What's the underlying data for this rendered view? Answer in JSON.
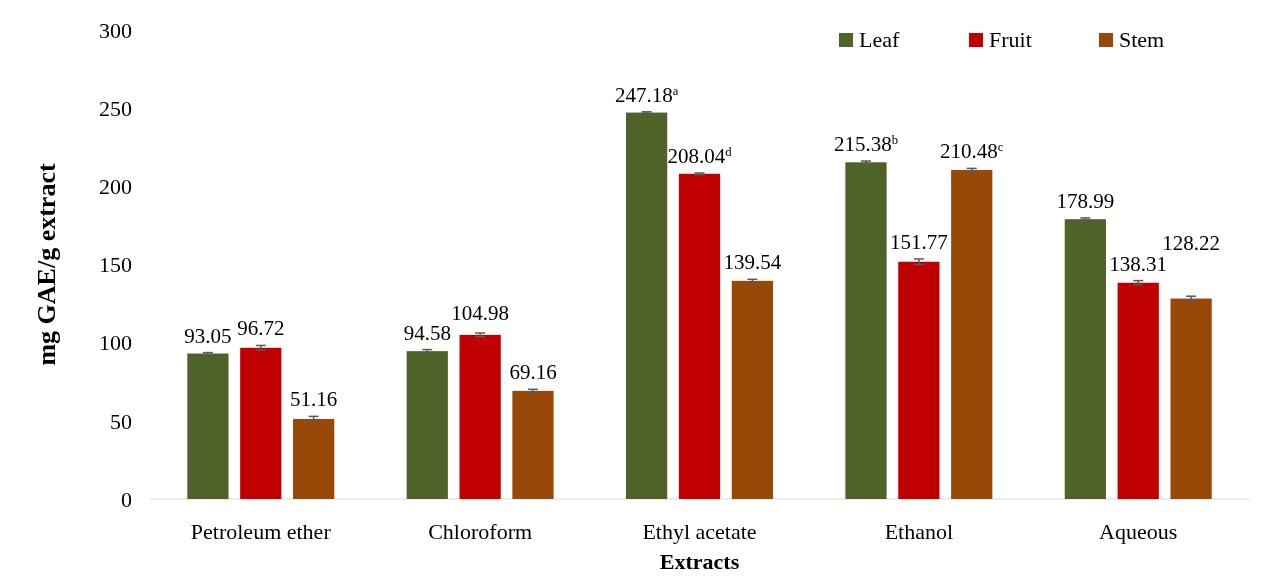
{
  "chart_data": {
    "type": "bar",
    "xlabel": "Extracts",
    "ylabel": "mg GAE/g extract",
    "categories": [
      "Petroleum ether",
      "Chloroform",
      "Ethyl acetate",
      "Ethanol",
      "Aqueous"
    ],
    "series": [
      {
        "name": "Leaf",
        "color": "#4f6228",
        "values": [
          93.05,
          94.58,
          247.18,
          215.38,
          178.99
        ],
        "errors": [
          0.6,
          1,
          0.5,
          0.8,
          0.8
        ],
        "value_labels": [
          "93.05",
          "94.58",
          "247.18$^{a}$",
          "215.38$^{b}$",
          "178.99"
        ]
      },
      {
        "name": "Fruit",
        "color": "#c00000",
        "values": [
          96.72,
          104.98,
          208.04,
          151.77,
          138.31
        ],
        "errors": [
          1.5,
          1.2,
          0.5,
          1.8,
          1.4
        ],
        "value_labels": [
          "96.72",
          "104.98",
          "208.04$^{d}$",
          "151.77",
          "138.31"
        ]
      },
      {
        "name": "Stem",
        "color": "#984807",
        "values": [
          51.16,
          69.16,
          139.54,
          210.48,
          128.22
        ],
        "errors": [
          1.7,
          1,
          1,
          1,
          1.5
        ],
        "value_labels": [
          "51.16",
          "69.16",
          "139.54",
          "210.48$^{c}$",
          "128.22"
        ]
      }
    ],
    "ylim": [
      0,
      300
    ],
    "yticks": [
      0,
      50,
      100,
      150,
      200,
      250,
      300
    ],
    "grid": false,
    "legend": "top right"
  }
}
